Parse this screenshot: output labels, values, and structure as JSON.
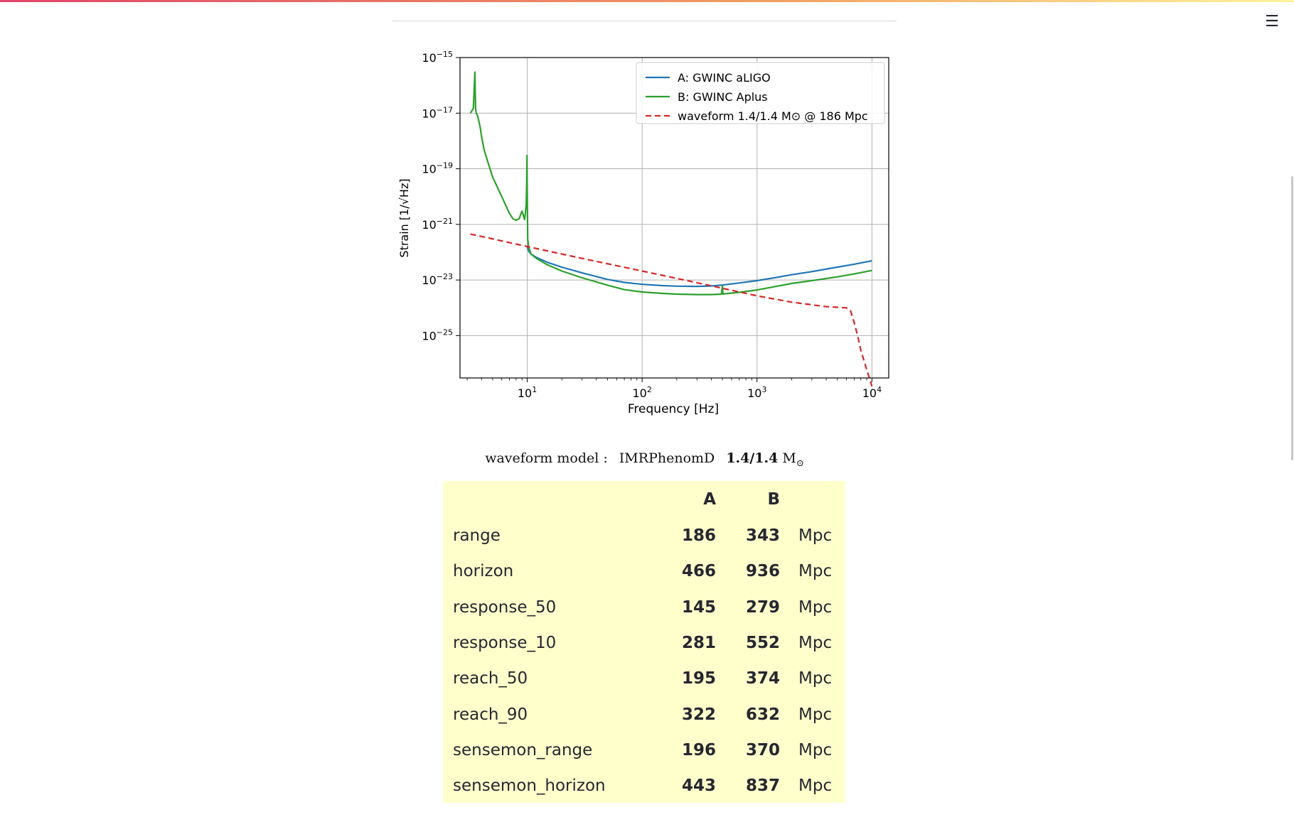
{
  "menu_icon": "hamburger-menu-icon",
  "caption": {
    "prefix": "waveform model :",
    "model": "IMRPhenomD",
    "mass": "1.4/1.4",
    "unit": "M",
    "unit_sub": "⊙"
  },
  "table": {
    "headers": [
      "",
      "A",
      "B",
      ""
    ],
    "rows": [
      {
        "name": "range",
        "a": "186",
        "b": "343",
        "unit": "Mpc"
      },
      {
        "name": "horizon",
        "a": "466",
        "b": "936",
        "unit": "Mpc"
      },
      {
        "name": "response_50",
        "a": "145",
        "b": "279",
        "unit": "Mpc"
      },
      {
        "name": "response_10",
        "a": "281",
        "b": "552",
        "unit": "Mpc"
      },
      {
        "name": "reach_50",
        "a": "195",
        "b": "374",
        "unit": "Mpc"
      },
      {
        "name": "reach_90",
        "a": "322",
        "b": "632",
        "unit": "Mpc"
      },
      {
        "name": "sensemon_range",
        "a": "196",
        "b": "370",
        "unit": "Mpc"
      },
      {
        "name": "sensemon_horizon",
        "a": "443",
        "b": "837",
        "unit": "Mpc"
      }
    ]
  },
  "chart_data": {
    "type": "line",
    "title": "",
    "xlabel": "Frequency [Hz]",
    "ylabel": "Strain [1/√Hz]",
    "xscale": "log",
    "yscale": "log",
    "xlim": [
      2.6,
      14000
    ],
    "ylim": [
      3e-27,
      1e-15
    ],
    "x_ticks": [
      {
        "base": "10",
        "exp": "1"
      },
      {
        "base": "10",
        "exp": "2"
      },
      {
        "base": "10",
        "exp": "3"
      },
      {
        "base": "10",
        "exp": "4"
      }
    ],
    "y_ticks": [
      {
        "base": "10",
        "exp": "−15"
      },
      {
        "base": "10",
        "exp": "−17"
      },
      {
        "base": "10",
        "exp": "−19"
      },
      {
        "base": "10",
        "exp": "−21"
      },
      {
        "base": "10",
        "exp": "−23"
      },
      {
        "base": "10",
        "exp": "−25"
      }
    ],
    "grid": true,
    "legend_position": "top-right",
    "series": [
      {
        "name": "A: GWINC aLIGO",
        "color": "#1f77b4",
        "style": "solid",
        "x": [
          10,
          10.3,
          10.8,
          12,
          15,
          20,
          30,
          50,
          70,
          100,
          150,
          200,
          300,
          400,
          500,
          700,
          1000,
          1500,
          2000,
          3000,
          5000,
          7000,
          10000
        ],
        "y": [
          1.6e-22,
          1.1e-22,
          8.5e-23,
          6.5e-23,
          4.3e-23,
          2.9e-23,
          1.8e-23,
          1.05e-23,
          8.2e-24,
          7e-24,
          6.3e-24,
          6e-24,
          5.9e-24,
          6.1e-24,
          6.6e-24,
          7.8e-24,
          9.5e-24,
          1.25e-23,
          1.55e-23,
          2e-23,
          2.9e-23,
          3.7e-23,
          4.9e-23
        ]
      },
      {
        "name": "B: GWINC Aplus",
        "color": "#2ca02c",
        "style": "solid",
        "x": [
          3.2,
          3.4,
          3.5,
          3.55,
          3.6,
          3.7,
          3.8,
          3.9,
          4.0,
          4.2,
          4.6,
          5.0,
          6.0,
          7.0,
          7.5,
          8.0,
          8.5,
          9.0,
          9.5,
          9.8,
          9.9,
          9.95,
          10.0,
          10.05,
          10.1,
          10.3,
          10.8,
          12,
          15,
          20,
          30,
          50,
          70,
          100,
          150,
          200,
          300,
          400,
          490,
          500,
          505,
          510,
          520,
          700,
          1000,
          1500,
          2000,
          3000,
          5000,
          7000,
          10000
        ],
        "y": [
          1e-17,
          1.5e-17,
          3e-16,
          1.5e-17,
          1e-17,
          8e-18,
          5e-18,
          3e-18,
          1.5e-18,
          5e-19,
          1.5e-19,
          5e-20,
          1e-20,
          2.5e-21,
          1.6e-21,
          1.4e-21,
          1.6e-21,
          3e-21,
          1.5e-21,
          5e-21,
          3e-20,
          3e-19,
          2e-20,
          2e-21,
          3e-22,
          1.5e-22,
          8.5e-23,
          6e-23,
          3.5e-23,
          2.1e-23,
          1.2e-23,
          6.5e-24,
          4.5e-24,
          3.7e-24,
          3.3e-24,
          3.1e-24,
          3e-24,
          3e-24,
          3.1e-24,
          6.2e-24,
          3.1e-24,
          3.1e-24,
          3.2e-24,
          3.6e-24,
          4.4e-24,
          6e-24,
          7.5e-24,
          9.5e-24,
          1.3e-23,
          1.65e-23,
          2.2e-23
        ]
      },
      {
        "name": "waveform 1.4/1.4 M⊙ @ 186 Mpc",
        "color": "#d62728",
        "style": "dashed",
        "x": [
          3.2,
          10,
          30,
          100,
          300,
          1000,
          2000,
          4000,
          6000,
          6500,
          7000,
          7500,
          8000,
          9000,
          10000
        ],
        "y": [
          4.5e-22,
          1.6e-22,
          6e-23,
          2.1e-23,
          8e-24,
          2.7e-24,
          1.6e-24,
          1.1e-24,
          1e-24,
          8e-25,
          3e-25,
          1e-25,
          3e-26,
          6e-27,
          1.5e-27
        ]
      }
    ]
  }
}
